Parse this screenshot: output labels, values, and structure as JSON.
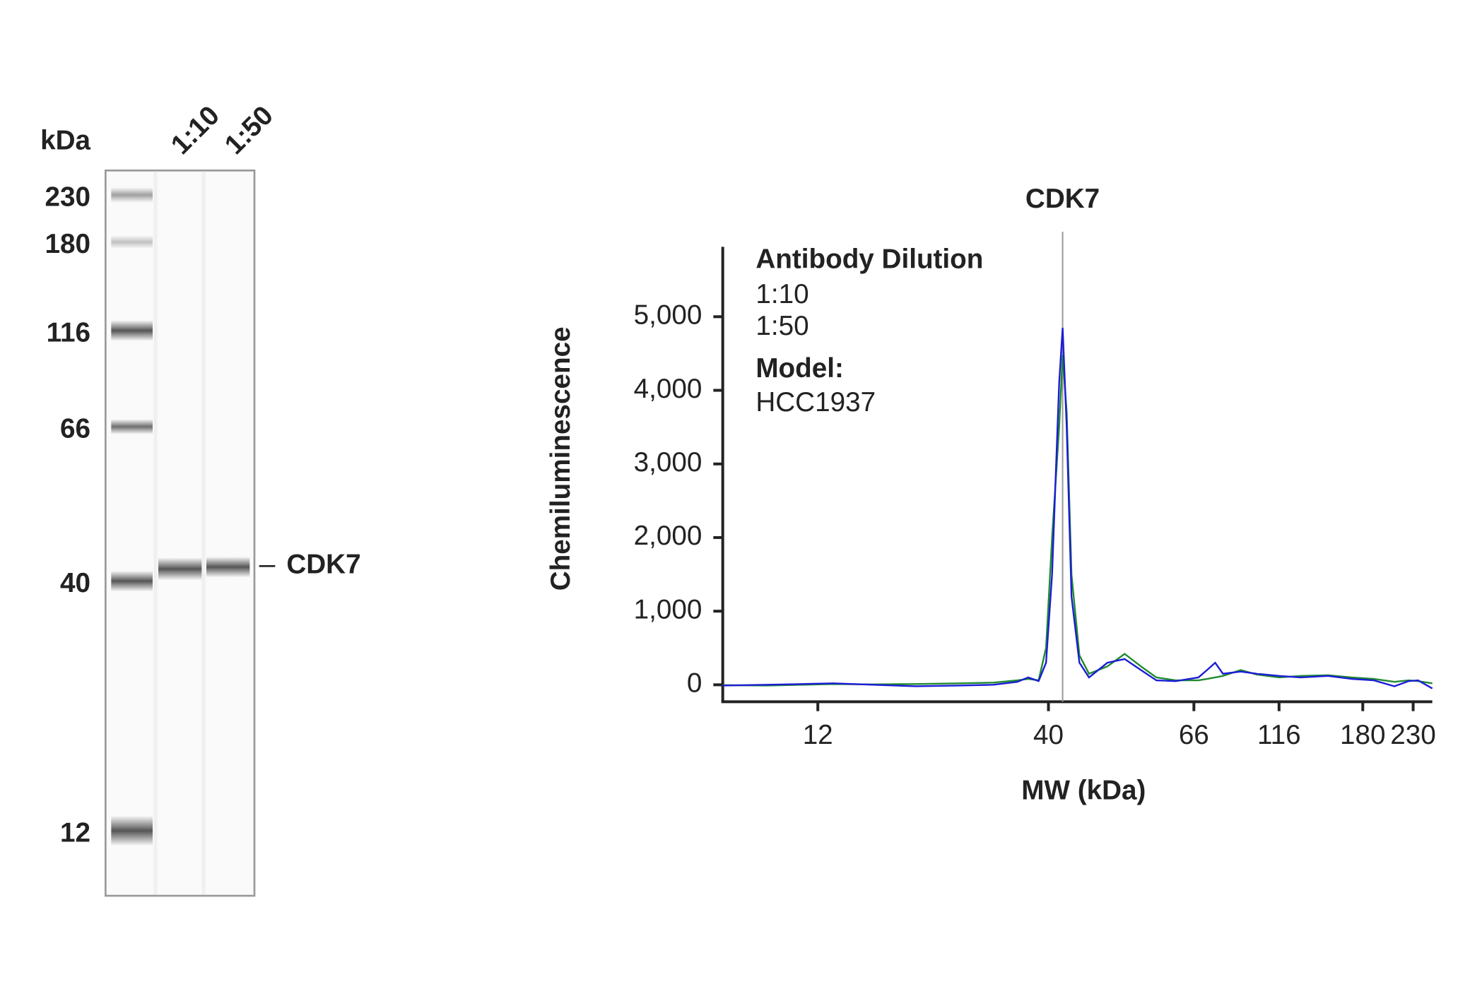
{
  "blot": {
    "unit_label": "kDa",
    "lanes": [
      "1:10",
      "1:50"
    ],
    "markers": [
      "230",
      "180",
      "116",
      "66",
      "40",
      "12"
    ],
    "band_label": "CDK7"
  },
  "chart_data": {
    "type": "line",
    "title": "CDK7",
    "xlabel": "MW (kDa)",
    "ylabel": "Chemiluminescence",
    "legend_title": "Antibody Dilution",
    "annotation_title": "Model:",
    "annotation": "HCC1937",
    "reference_x": 42,
    "x": [
      7,
      9,
      11,
      13,
      16,
      20,
      25,
      30,
      34,
      36,
      38,
      39.5,
      40.5,
      41.5,
      42,
      42.6,
      43.3,
      44.5,
      46,
      49,
      52,
      55,
      58,
      62,
      68,
      72,
      76,
      80,
      90,
      100,
      116,
      130,
      150,
      170,
      190,
      210,
      225,
      235,
      250
    ],
    "series": [
      {
        "name": "1:10",
        "color": "#1c1cd6",
        "values": [
          -10,
          0,
          10,
          20,
          0,
          -20,
          -10,
          0,
          40,
          100,
          50,
          300,
          1500,
          4100,
          4850,
          3500,
          1200,
          300,
          100,
          300,
          350,
          200,
          60,
          50,
          100,
          200,
          300,
          150,
          180,
          150,
          120,
          100,
          120,
          80,
          60,
          -20,
          50,
          60,
          -50
        ]
      },
      {
        "name": "1:50",
        "color": "#1f8a30",
        "values": [
          -5,
          -10,
          0,
          10,
          5,
          10,
          20,
          30,
          60,
          80,
          60,
          500,
          2000,
          3500,
          4480,
          3700,
          1500,
          400,
          150,
          250,
          420,
          250,
          100,
          60,
          60,
          80,
          100,
          120,
          200,
          140,
          100,
          120,
          130,
          100,
          80,
          40,
          60,
          50,
          20
        ]
      }
    ],
    "xlim": [
      7,
      250
    ],
    "xticks": [
      12,
      40,
      66,
      116,
      180,
      230
    ],
    "ylim": [
      -230,
      5950
    ],
    "yticks": [
      0,
      {
        "value": 1000,
        "label": "1,000"
      },
      {
        "value": 2000,
        "label": "2,000"
      },
      {
        "value": 3000,
        "label": "3,000"
      },
      {
        "value": 4000,
        "label": "4,000"
      },
      {
        "value": 5000,
        "label": "5,000"
      }
    ]
  }
}
